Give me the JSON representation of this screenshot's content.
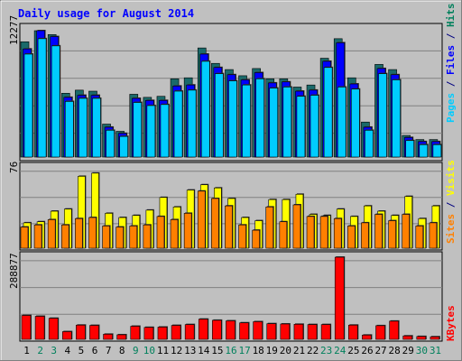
{
  "chart_data": [
    {
      "type": "bar",
      "panel": "hits-files-pages",
      "title": "Daily usage for August 2014",
      "categories": [
        "1",
        "2",
        "3",
        "4",
        "5",
        "6",
        "7",
        "8",
        "9",
        "10",
        "11",
        "12",
        "13",
        "14",
        "15",
        "16",
        "17",
        "18",
        "19",
        "20",
        "21",
        "22",
        "23",
        "24",
        "25",
        "26",
        "27",
        "28",
        "29",
        "30",
        "31"
      ],
      "y_tick_label": "12277",
      "ylim": [
        0,
        12277
      ],
      "series": [
        {
          "name": "Hits",
          "color": "#00805c",
          "values": [
            11200,
            12277,
            11900,
            6200,
            6500,
            6400,
            3200,
            2500,
            6100,
            5800,
            5900,
            7600,
            7700,
            10600,
            9100,
            8500,
            7900,
            8600,
            7600,
            7600,
            6800,
            7000,
            9600,
            11500,
            7700,
            3400,
            9000,
            8500,
            2100,
            1700,
            1700
          ]
        },
        {
          "name": "Files",
          "color": "#0000ff",
          "values": [
            10500,
            12277,
            11700,
            5800,
            6000,
            6000,
            2900,
            2300,
            5700,
            5500,
            5500,
            6900,
            7000,
            10000,
            8700,
            8000,
            7500,
            8200,
            7200,
            7300,
            6400,
            6500,
            9300,
            11100,
            7100,
            2900,
            8600,
            8000,
            1900,
            1500,
            1500
          ]
        },
        {
          "name": "Pages",
          "color": "#00ccff",
          "values": [
            10000,
            11500,
            10800,
            5400,
            5700,
            5700,
            2600,
            2000,
            5300,
            5000,
            5100,
            6400,
            6500,
            9300,
            8100,
            7400,
            7000,
            7600,
            6700,
            6800,
            5900,
            6000,
            8700,
            6800,
            6600,
            2600,
            8100,
            7500,
            1600,
            1200,
            1200
          ]
        }
      ]
    },
    {
      "type": "bar",
      "panel": "visits-sites",
      "y_tick_label": "76",
      "ylim": [
        0,
        76
      ],
      "series": [
        {
          "name": "Visits",
          "color": "#ffff00",
          "values": [
            24,
            25,
            35,
            37,
            68,
            71,
            33,
            29,
            31,
            36,
            48,
            39,
            55,
            60,
            57,
            47,
            29,
            26,
            46,
            46,
            51,
            32,
            31,
            37,
            30,
            40,
            35,
            31,
            49,
            28,
            40
          ]
        },
        {
          "name": "Sites",
          "color": "#ff8000",
          "values": [
            20,
            22,
            27,
            22,
            28,
            29,
            21,
            20,
            21,
            22,
            30,
            27,
            33,
            54,
            47,
            40,
            22,
            17,
            39,
            25,
            41,
            30,
            30,
            28,
            21,
            24,
            32,
            26,
            32,
            21,
            24
          ]
        }
      ]
    },
    {
      "type": "bar",
      "panel": "kbytes",
      "y_tick_label": "288877",
      "ylim": [
        0,
        288877
      ],
      "series": [
        {
          "name": "KBytes",
          "color": "#ff0000",
          "values": [
            84000,
            81000,
            74000,
            27000,
            50000,
            49000,
            18000,
            16000,
            46000,
            42000,
            43000,
            49000,
            52000,
            71000,
            67000,
            65000,
            58000,
            62000,
            55000,
            54000,
            53000,
            52000,
            52000,
            288877,
            50000,
            15000,
            48000,
            64000,
            12000,
            10000,
            9000
          ]
        }
      ]
    }
  ],
  "axis_labels": {
    "top_right": [
      {
        "text": "Pages",
        "color": "#00ccff"
      },
      {
        "text": " / ",
        "color": "#000080"
      },
      {
        "text": "Files",
        "color": "#0000ff"
      },
      {
        "text": " / ",
        "color": "#000080"
      },
      {
        "text": "Hits",
        "color": "#00805c"
      }
    ],
    "mid_right": [
      {
        "text": "Sites",
        "color": "#ff8000"
      },
      {
        "text": " / ",
        "color": "#000080"
      },
      {
        "text": "Visits",
        "color": "#ffff00"
      }
    ],
    "bottom_right": [
      {
        "text": "KBytes",
        "color": "#ff0000"
      }
    ]
  },
  "weekend_days": [
    "2",
    "3",
    "9",
    "10",
    "16",
    "17",
    "23",
    "24",
    "30",
    "31"
  ],
  "colors": {
    "frame_bg": "#c0c0c0",
    "plot_bg": "#c0c0c0",
    "title": "#0000ff",
    "weekday_label": "#000000",
    "weekend_label": "#00805c",
    "highlight_day_bar": "#0000ff"
  },
  "highlight_day": "24"
}
